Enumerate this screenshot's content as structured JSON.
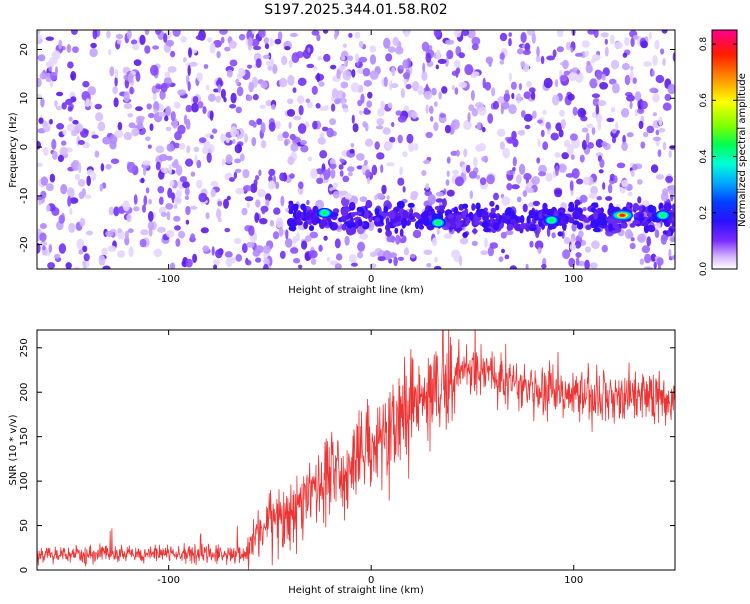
{
  "title": "S197.2025.344.01.58.R02",
  "chart_data": [
    {
      "type": "heatmap",
      "xlabel": "Height of straight line (km)",
      "ylabel": "Frequency (Hz)",
      "xlim": [
        -165,
        150
      ],
      "ylim": [
        -25,
        24
      ],
      "x_ticks": [
        -100,
        0,
        100
      ],
      "y_ticks": [
        20,
        10,
        0,
        -10,
        -20
      ],
      "grid": false,
      "colorbar": {
        "label": "Normalized spectral amplitude",
        "range": [
          0.0,
          0.85
        ],
        "ticks": [
          0.0,
          0.2,
          0.4,
          0.6,
          0.8
        ],
        "colormap": [
          "#ffffff",
          "#7a2aff",
          "#3a10ff",
          "#0030ff",
          "#00a0ff",
          "#00ffd0",
          "#00ff40",
          "#90ff00",
          "#ffff00",
          "#ff8000",
          "#ff0000",
          "#ff0090"
        ]
      },
      "signal_band": {
        "frequency": -14.5,
        "x_start": -40,
        "x_end": 150
      },
      "hotspots": [
        {
          "x": -23,
          "y": -13.5,
          "amplitude": 0.4
        },
        {
          "x": 33,
          "y": -15.5,
          "amplitude": 0.35
        },
        {
          "x": 89,
          "y": -15.0,
          "amplitude": 0.4
        },
        {
          "x": 124,
          "y": -14.0,
          "amplitude": 0.8
        },
        {
          "x": 144,
          "y": -14.0,
          "amplitude": 0.4
        }
      ]
    },
    {
      "type": "line",
      "xlabel": "Height of straight line (km)",
      "ylabel": "SNR (10 * v/v)",
      "xlim": [
        -165,
        150
      ],
      "ylim": [
        0,
        270
      ],
      "x_ticks": [
        -100,
        0,
        100
      ],
      "y_ticks": [
        0,
        50,
        100,
        150,
        200,
        250
      ],
      "grid": false,
      "series": [
        {
          "name": "SNR",
          "color": "#ee3333",
          "envelope": {
            "x": [
              -165,
              -62,
              -58,
              -50,
              -40,
              -30,
              -20,
              -10,
              0,
              10,
              20,
              30,
              40,
              50,
              60,
              70,
              80,
              90,
              100,
              110,
              120,
              130,
              140,
              150
            ],
            "y": [
              18,
              18,
              40,
              60,
              70,
              85,
              110,
              125,
              140,
              160,
              185,
              205,
              220,
              225,
              220,
              210,
              205,
              200,
              198,
              196,
              195,
              195,
              193,
              195
            ]
          }
        }
      ]
    }
  ]
}
